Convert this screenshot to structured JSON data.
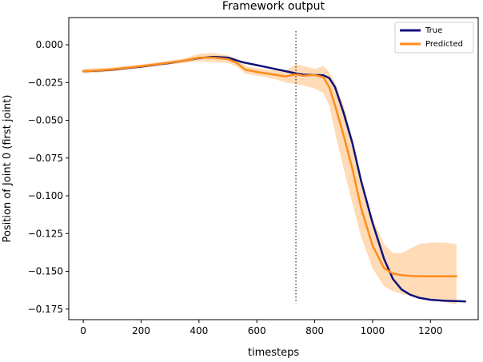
{
  "chart_data": {
    "type": "line",
    "title": "Framework output",
    "xlabel": "timesteps",
    "ylabel": "Position of Joint 0 (first joint)",
    "xlim": [
      -50,
      1365
    ],
    "ylim": [
      -0.182,
      0.018
    ],
    "xticks": [
      0,
      200,
      400,
      600,
      800,
      1000,
      1200
    ],
    "yticks": [
      0.0,
      -0.025,
      -0.05,
      -0.075,
      -0.1,
      -0.125,
      -0.15,
      -0.175
    ],
    "xtick_labels": [
      "0",
      "200",
      "400",
      "600",
      "800",
      "1000",
      "1200"
    ],
    "ytick_labels": [
      "0.000",
      "−0.025",
      "−0.050",
      "−0.075",
      "−0.100",
      "−0.125",
      "−0.150",
      "−0.175"
    ],
    "grid": false,
    "legend_position": "top-right",
    "vline": {
      "x": 735,
      "y_range": [
        -0.171,
        0.009
      ],
      "style": "dotted"
    },
    "series": [
      {
        "name": "True",
        "color": "#10127a",
        "x": [
          0,
          50,
          100,
          150,
          200,
          250,
          300,
          350,
          400,
          450,
          500,
          550,
          600,
          650,
          700,
          735,
          760,
          800,
          830,
          850,
          870,
          900,
          930,
          960,
          1000,
          1040,
          1070,
          1100,
          1130,
          1160,
          1200,
          1250,
          1300,
          1320
        ],
        "y": [
          -0.0175,
          -0.0172,
          -0.0165,
          -0.0155,
          -0.0145,
          -0.0132,
          -0.012,
          -0.0105,
          -0.0088,
          -0.008,
          -0.0085,
          -0.0115,
          -0.0135,
          -0.0155,
          -0.0175,
          -0.019,
          -0.0198,
          -0.02,
          -0.0202,
          -0.022,
          -0.028,
          -0.045,
          -0.065,
          -0.09,
          -0.118,
          -0.142,
          -0.155,
          -0.162,
          -0.1655,
          -0.1675,
          -0.1688,
          -0.1695,
          -0.1698,
          -0.17
        ]
      },
      {
        "name": "Predicted",
        "color": "#ff8c1a",
        "x": [
          0,
          50,
          100,
          150,
          200,
          250,
          300,
          350,
          400,
          450,
          500,
          530,
          560,
          600,
          650,
          700,
          735,
          760,
          800,
          830,
          850,
          870,
          900,
          930,
          960,
          1000,
          1040,
          1070,
          1100,
          1130,
          1160,
          1200,
          1250,
          1290
        ],
        "y": [
          -0.0175,
          -0.017,
          -0.0163,
          -0.0153,
          -0.0142,
          -0.013,
          -0.0118,
          -0.0105,
          -0.0085,
          -0.0085,
          -0.0095,
          -0.012,
          -0.0165,
          -0.018,
          -0.0195,
          -0.021,
          -0.0195,
          -0.0205,
          -0.02,
          -0.0215,
          -0.028,
          -0.04,
          -0.06,
          -0.082,
          -0.108,
          -0.133,
          -0.148,
          -0.1515,
          -0.1525,
          -0.153,
          -0.1532,
          -0.1533,
          -0.1533,
          -0.1533
        ]
      }
    ],
    "band": {
      "name": "Predicted uncertainty",
      "color": "#ffcf9f",
      "x": [
        0,
        50,
        100,
        150,
        200,
        250,
        300,
        350,
        400,
        450,
        500,
        530,
        560,
        600,
        650,
        700,
        735,
        760,
        800,
        830,
        850,
        870,
        900,
        930,
        960,
        1000,
        1040,
        1070,
        1100,
        1130,
        1160,
        1200,
        1250,
        1290
      ],
      "upper": [
        -0.016,
        -0.0155,
        -0.015,
        -0.014,
        -0.013,
        -0.0118,
        -0.0106,
        -0.009,
        -0.006,
        -0.0055,
        -0.007,
        -0.0095,
        -0.014,
        -0.0155,
        -0.0168,
        -0.017,
        -0.013,
        -0.014,
        -0.016,
        -0.014,
        -0.018,
        -0.025,
        -0.04,
        -0.062,
        -0.088,
        -0.115,
        -0.132,
        -0.138,
        -0.138,
        -0.135,
        -0.132,
        -0.131,
        -0.131,
        -0.132
      ],
      "lower": [
        -0.019,
        -0.0185,
        -0.0176,
        -0.0166,
        -0.0154,
        -0.0142,
        -0.013,
        -0.012,
        -0.011,
        -0.0115,
        -0.012,
        -0.0145,
        -0.019,
        -0.0205,
        -0.022,
        -0.025,
        -0.026,
        -0.027,
        -0.029,
        -0.032,
        -0.04,
        -0.058,
        -0.082,
        -0.105,
        -0.127,
        -0.148,
        -0.16,
        -0.163,
        -0.165,
        -0.166,
        -0.167,
        -0.169,
        -0.1705,
        -0.172
      ]
    }
  }
}
